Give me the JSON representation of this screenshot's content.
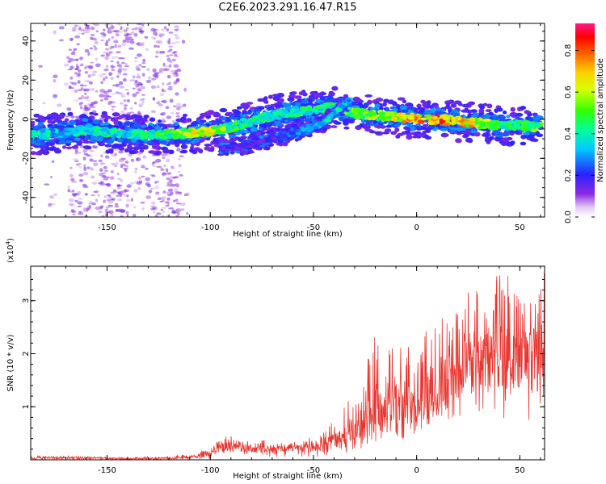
{
  "title": "C2E6.2023.291.16.47.R15",
  "chart_data": [
    {
      "type": "heatmap",
      "xlabel": "Height of straight line (km)",
      "ylabel": "Frequency (Hz)",
      "xlim": [
        -187,
        62
      ],
      "ylim": [
        -50,
        49
      ],
      "xticks": [
        -150,
        -100,
        -50,
        0,
        50
      ],
      "yticks": [
        -40,
        -20,
        0,
        20,
        40
      ],
      "colorbar": {
        "label": "Normalized spectral amplitude",
        "range": [
          0,
          0.93
        ],
        "ticks": [
          0.0,
          0.2,
          0.4,
          0.6,
          0.8
        ]
      },
      "main_band": {
        "x": [
          -187,
          -170,
          -160,
          -150,
          -140,
          -130,
          -120,
          -110,
          -100,
          -90,
          -80,
          -70,
          -60,
          -50,
          -40,
          -30,
          -20,
          -10,
          0,
          10,
          20,
          30,
          40,
          50,
          60
        ],
        "freq": [
          -8,
          -7,
          -5,
          -7,
          -7,
          -8,
          -8,
          -7,
          -6,
          -4,
          -1,
          2,
          4,
          5,
          6,
          3,
          2,
          1,
          0,
          0,
          -1,
          -2,
          -3,
          -3,
          -4
        ],
        "peak_amplitude": [
          0.45,
          0.4,
          0.45,
          0.5,
          0.45,
          0.5,
          0.55,
          0.7,
          0.75,
          0.55,
          0.5,
          0.5,
          0.45,
          0.55,
          0.55,
          0.6,
          0.65,
          0.75,
          0.85,
          0.9,
          0.85,
          0.75,
          0.55,
          0.5,
          0.65
        ]
      },
      "secondary_band": {
        "x": [
          -95,
          -85,
          -75,
          -65,
          -55,
          -45,
          -38,
          -32
        ],
        "freq": [
          -15,
          -14,
          -11,
          -9,
          -6,
          -2,
          5,
          10
        ],
        "peak_amplitude": [
          0.2,
          0.2,
          0.2,
          0.25,
          0.35,
          0.4,
          0.45,
          0.35
        ]
      }
    },
    {
      "type": "line",
      "xlabel": "Height of straight line (km)",
      "ylabel": "SNR (10 * v/v)",
      "y_multiplier": "(x10",
      "y_multiplier_exp": "4",
      "y_multiplier_close": ")",
      "xlim": [
        -187,
        62
      ],
      "ylim": [
        0,
        3.65
      ],
      "xticks": [
        -150,
        -100,
        -50,
        0,
        50
      ],
      "yticks": [
        1,
        2,
        3
      ],
      "color": "#e8362e",
      "series": [
        {
          "x": [
            -187,
            -160,
            -140,
            -120,
            -110,
            -100,
            -95,
            -90,
            -85,
            -80,
            -75,
            -70,
            -65,
            -60,
            -55,
            -50,
            -45,
            -40,
            -35,
            -30,
            -25,
            -20,
            -15,
            -10,
            -5,
            0,
            5,
            10,
            15,
            20,
            25,
            30,
            35,
            40,
            45,
            50,
            55,
            60
          ],
          "mean": [
            0.03,
            0.04,
            0.02,
            0.03,
            0.05,
            0.12,
            0.22,
            0.28,
            0.22,
            0.2,
            0.24,
            0.18,
            0.2,
            0.22,
            0.2,
            0.25,
            0.28,
            0.38,
            0.42,
            0.55,
            0.7,
            0.8,
            0.9,
            0.95,
            1.1,
            1.05,
            1.2,
            1.35,
            1.45,
            1.6,
            1.75,
            1.8,
            1.85,
            1.85,
            1.9,
            1.85,
            1.95,
            2.0
          ],
          "peak": [
            0.08,
            0.07,
            0.05,
            0.08,
            0.12,
            0.22,
            0.42,
            0.5,
            0.38,
            0.35,
            0.4,
            0.3,
            0.33,
            0.38,
            0.35,
            0.48,
            0.6,
            0.8,
            1.0,
            1.3,
            1.7,
            2.5,
            2.3,
            2.0,
            2.4,
            2.0,
            2.5,
            2.8,
            2.7,
            3.1,
            3.2,
            3.2,
            3.5,
            3.65,
            3.6,
            3.4,
            3.3,
            3.65
          ],
          "trough": [
            0.0,
            0.0,
            0.0,
            0.0,
            0.0,
            0.02,
            0.05,
            0.05,
            0.08,
            0.06,
            0.05,
            0.05,
            0.06,
            0.05,
            0.04,
            0.05,
            0.05,
            0.1,
            0.1,
            0.15,
            0.2,
            0.3,
            0.3,
            0.35,
            0.4,
            0.45,
            0.5,
            0.55,
            0.6,
            0.7,
            0.8,
            0.85,
            0.9,
            0.8,
            0.55,
            0.7,
            0.75,
            0.85
          ]
        }
      ]
    }
  ]
}
